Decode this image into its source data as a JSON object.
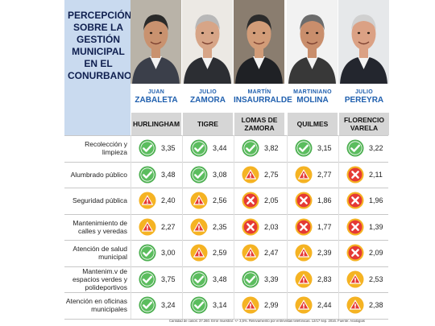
{
  "title": "PERCEPCIÓN SOBRE LA GESTIÓN MUNICIPAL EN EL CONURBANO",
  "colors": {
    "good": "#4caf50",
    "warn": "#e53935",
    "warn_bg": "#f5b323",
    "bad": "#e53935",
    "accent": "#1f5fae",
    "panel": "#c9daef"
  },
  "chart_data": {
    "type": "table",
    "title": "PERCEPCIÓN SOBRE LA GESTIÓN MUNICIPAL EN EL CONURBANO",
    "mayors": [
      {
        "first": "JUAN",
        "last": "ZABALETA",
        "municipality": "HURLINGHAM"
      },
      {
        "first": "JULIO",
        "last": "ZAMORA",
        "municipality": "TIGRE"
      },
      {
        "first": "MARTÍN",
        "last": "INSAURRALDE",
        "municipality": "LOMAS DE ZAMORA"
      },
      {
        "first": "MARTINIANO",
        "last": "MOLINA",
        "municipality": "QUILMES"
      },
      {
        "first": "JULIO",
        "last": "PEREYRA",
        "municipality": "FLORENCIO VARELA"
      }
    ],
    "rows": [
      {
        "label": "Recolección y limpieza",
        "values": [
          3.35,
          3.44,
          3.82,
          3.15,
          3.22
        ],
        "status": [
          "good",
          "good",
          "good",
          "good",
          "good"
        ]
      },
      {
        "label": "Alumbrado público",
        "values": [
          3.48,
          3.08,
          2.75,
          2.77,
          2.11
        ],
        "status": [
          "good",
          "good",
          "warn",
          "warn",
          "bad"
        ]
      },
      {
        "label": "Seguridad pública",
        "values": [
          2.4,
          2.56,
          2.05,
          1.86,
          1.96
        ],
        "status": [
          "warn",
          "warn",
          "bad",
          "bad",
          "bad"
        ]
      },
      {
        "label": "Mantenimiento de calles y veredas",
        "values": [
          2.27,
          2.35,
          2.03,
          1.77,
          1.39
        ],
        "status": [
          "warn",
          "warn",
          "bad",
          "bad",
          "bad"
        ]
      },
      {
        "label": "Atención de salud municipal",
        "values": [
          3.0,
          2.59,
          2.47,
          2.39,
          2.09
        ],
        "status": [
          "good",
          "warn",
          "warn",
          "warn",
          "bad"
        ]
      },
      {
        "label": "Mantenim.v de espacios verdes y polideportivos",
        "values": [
          3.75,
          3.48,
          3.39,
          2.83,
          2.53
        ],
        "status": [
          "good",
          "good",
          "good",
          "warn",
          "warn"
        ]
      },
      {
        "label": "Atención en oficinas municipales",
        "values": [
          3.24,
          3.14,
          2.99,
          2.44,
          2.38
        ],
        "status": [
          "good",
          "good",
          "warn",
          "warn",
          "warn"
        ]
      }
    ],
    "value_labels": [
      [
        "3,35",
        "3,44",
        "3,82",
        "3,15",
        "3,22"
      ],
      [
        "3,48",
        "3,08",
        "2,75",
        "2,77",
        "2,11"
      ],
      [
        "2,40",
        "2,56",
        "2,05",
        "1,86",
        "1,96"
      ],
      [
        "2,27",
        "2,35",
        "2,03",
        "1,77",
        "1,39"
      ],
      [
        "3,00",
        "2,59",
        "2,47",
        "2,39",
        "2,09"
      ],
      [
        "3,75",
        "3,48",
        "3,39",
        "2,83",
        "2,53"
      ],
      [
        "3,24",
        "3,14",
        "2,99",
        "2,44",
        "2,38"
      ]
    ]
  },
  "footnote": "Cantidad de casos: 37.260. Error muestral: +/- 3,5%. Relevamiento por entrevistas telefónicas. 12/17 sep. 2016. Fuente: Analogías"
}
